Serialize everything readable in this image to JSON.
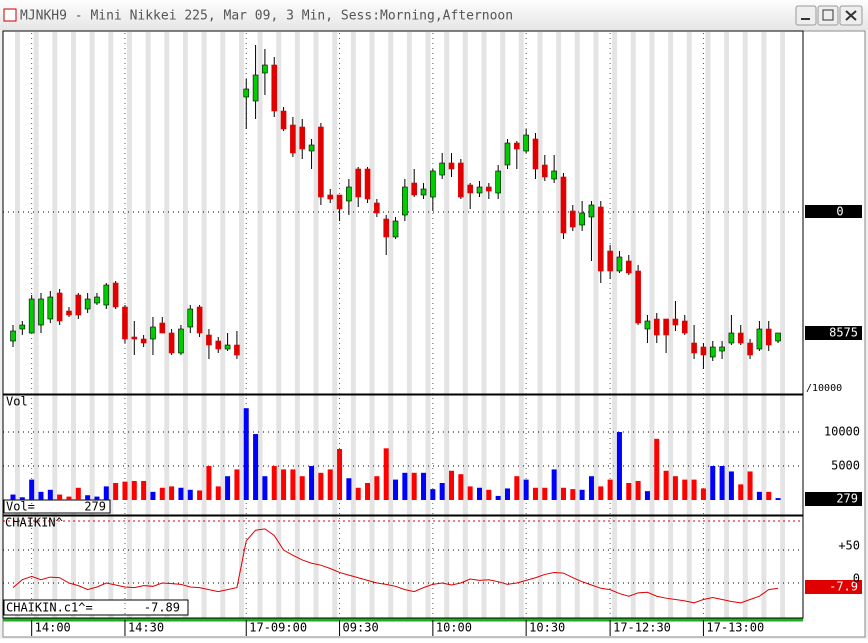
{
  "window": {
    "title": "MJNKH9 - Mini Nikkei 225, Mar 09, 3 Min, Sess:Morning,Afternoon"
  },
  "chart_data": [
    {
      "type": "candlestick",
      "right_axis_label": "0",
      "scale_note": "/10000",
      "ylim": [
        8545,
        8725
      ],
      "up_color": "#00cc00",
      "down_color": "#e00000",
      "categories": [
        null,
        null,
        "14:00",
        null,
        null,
        null,
        null,
        null,
        null,
        null,
        null,
        null,
        "14:30",
        null,
        null,
        null,
        null,
        null,
        null,
        null,
        null,
        null,
        null,
        null,
        null,
        "17-09:00",
        null,
        null,
        null,
        null,
        null,
        null,
        null,
        null,
        null,
        "09:30",
        null,
        null,
        null,
        null,
        null,
        null,
        null,
        null,
        null,
        "10:00",
        null,
        null,
        null,
        null,
        null,
        null,
        null,
        null,
        null,
        "10:30",
        null,
        null,
        null,
        null,
        null,
        null,
        null,
        null,
        "17-12:30",
        null,
        null,
        null,
        null,
        null,
        null,
        null,
        null,
        null,
        "17-13:00",
        null,
        null,
        null,
        null,
        null,
        null,
        null,
        null
      ],
      "ohlc": [
        [
          8571,
          8579,
          8568,
          8576
        ],
        [
          8577,
          8581,
          8574,
          8579
        ],
        [
          8575,
          8594,
          8575,
          8592
        ],
        [
          8579,
          8595,
          8575,
          8592
        ],
        [
          8582,
          8596,
          8580,
          8593
        ],
        [
          8595,
          8597,
          8579,
          8581
        ],
        [
          8586,
          8588,
          8583,
          8584
        ],
        [
          8594,
          8595,
          8582,
          8584
        ],
        [
          8587,
          8595,
          8585,
          8592
        ],
        [
          8590,
          8595,
          8589,
          8593
        ],
        [
          8589,
          8600,
          8587,
          8599
        ],
        [
          8600,
          8601,
          8587,
          8588
        ],
        [
          8588,
          8589,
          8570,
          8572
        ],
        [
          8573,
          8581,
          8564,
          8572
        ],
        [
          8572,
          8574,
          8568,
          8570
        ],
        [
          8572,
          8583,
          8564,
          8578
        ],
        [
          8580,
          8583,
          8575,
          8575
        ],
        [
          8575,
          8577,
          8564,
          8565
        ],
        [
          8565,
          8579,
          8564,
          8577
        ],
        [
          8578,
          8589,
          8575,
          8587
        ],
        [
          8588,
          8589,
          8573,
          8575
        ],
        [
          8574,
          8577,
          8562,
          8569
        ],
        [
          8571,
          8573,
          8565,
          8567
        ],
        [
          8567,
          8575,
          8566,
          8569
        ],
        [
          8569,
          8576,
          8562,
          8564
        ],
        [
          8693,
          8702,
          8677,
          8697
        ],
        [
          8691,
          8719,
          8682,
          8704
        ],
        [
          8705,
          8717,
          8694,
          8709
        ],
        [
          8709,
          8713,
          8683,
          8686
        ],
        [
          8686,
          8688,
          8676,
          8677
        ],
        [
          8679,
          8683,
          8663,
          8665
        ],
        [
          8678,
          8682,
          8662,
          8667
        ],
        [
          8666,
          8672,
          8657,
          8669
        ],
        [
          8678,
          8680,
          8639,
          8643
        ],
        [
          8644,
          8647,
          8640,
          8642
        ],
        [
          8644,
          8644,
          8631,
          8637
        ],
        [
          8641,
          8652,
          8634,
          8648
        ],
        [
          8657,
          8658,
          8638,
          8643
        ],
        [
          8657,
          8658,
          8640,
          8642
        ],
        [
          8640,
          8642,
          8633,
          8635
        ],
        [
          8632,
          8634,
          8614,
          8623
        ],
        [
          8623,
          8633,
          8622,
          8631
        ],
        [
          8634,
          8652,
          8631,
          8648
        ],
        [
          8650,
          8657,
          8643,
          8644
        ],
        [
          8644,
          8650,
          8642,
          8647
        ],
        [
          8643,
          8657,
          8636,
          8656
        ],
        [
          8654,
          8665,
          8652,
          8660
        ],
        [
          8660,
          8665,
          8653,
          8657
        ],
        [
          8660,
          8662,
          8642,
          8643
        ],
        [
          8649,
          8650,
          8637,
          8645
        ],
        [
          8645,
          8651,
          8643,
          8648
        ],
        [
          8648,
          8650,
          8642,
          8646
        ],
        [
          8645,
          8659,
          8642,
          8656
        ],
        [
          8659,
          8672,
          8657,
          8670
        ],
        [
          8670,
          8671,
          8657,
          8667
        ],
        [
          8666,
          8677,
          8665,
          8674
        ],
        [
          8672,
          8675,
          8652,
          8657
        ],
        [
          8659,
          8664,
          8651,
          8653
        ],
        [
          8652,
          8664,
          8650,
          8656
        ],
        [
          8653,
          8655,
          8622,
          8625
        ],
        [
          8636,
          8639,
          8626,
          8628
        ],
        [
          8629,
          8641,
          8626,
          8635
        ],
        [
          8633,
          8641,
          8611,
          8639
        ],
        [
          8638,
          8641,
          8600,
          8606
        ],
        [
          8616,
          8619,
          8602,
          8606
        ],
        [
          8606,
          8616,
          8605,
          8613
        ],
        [
          8611,
          8614,
          8604,
          8605
        ],
        [
          8606,
          8609,
          8579,
          8580
        ],
        [
          8577,
          8584,
          8570,
          8581
        ],
        [
          8582,
          8585,
          8570,
          8574
        ],
        [
          8582,
          8582,
          8565,
          8574
        ],
        [
          8582,
          8591,
          8576,
          8579
        ],
        [
          8581,
          8584,
          8574,
          8575
        ],
        [
          8570,
          8579,
          8562,
          8565
        ],
        [
          8568,
          8570,
          8557,
          8564
        ],
        [
          8563,
          8571,
          8561,
          8568
        ],
        [
          8566,
          8571,
          8562,
          8568
        ],
        [
          8570,
          8584,
          8569,
          8575
        ],
        [
          8575,
          8579,
          8569,
          8570
        ],
        [
          8570,
          8572,
          8562,
          8564
        ],
        [
          8567,
          8581,
          8566,
          8577
        ],
        [
          8577,
          8581,
          8566,
          8569
        ],
        [
          8571,
          8575,
          8570,
          8575
        ]
      ]
    },
    {
      "type": "bar",
      "name": "Vol",
      "readout_label": "Vol=",
      "ylim": [
        0,
        15150
      ],
      "yticks": [
        5000,
        10000
      ],
      "grid": true,
      "values": [
        800,
        400,
        3000,
        1200,
        1500,
        800,
        500,
        1800,
        700,
        500,
        2000,
        2500,
        2700,
        2800,
        2800,
        1200,
        1800,
        2000,
        1800,
        1500,
        1400,
        5000,
        2000,
        3500,
        4500,
        13500,
        9700,
        3500,
        5000,
        4500,
        4500,
        3500,
        5000,
        4000,
        4500,
        7500,
        3200,
        1800,
        2500,
        3500,
        7600,
        3000,
        4000,
        4000,
        4000,
        1600,
        2500,
        4300,
        3800,
        2000,
        1800,
        1500,
        600,
        1700,
        3500,
        3000,
        1800,
        1800,
        4500,
        1800,
        1600,
        1500,
        3500,
        2000,
        3000,
        10000,
        2500,
        2800,
        1300,
        9000,
        4300,
        3500,
        3000,
        3000,
        1700,
        5000,
        5000,
        4200,
        2300,
        4200,
        1200,
        1200,
        279
      ]
    },
    {
      "type": "line",
      "name": "CHAIKIN^",
      "readout_label": "CHAIKIN.c1^=",
      "color": "#e00000",
      "ylim": [
        -51.5,
        98.5
      ],
      "yticks": [
        {
          "value": 50,
          "label": "+50"
        },
        0
      ],
      "grid": true,
      "last_label": "-7.9",
      "values": [
        -7,
        5,
        10,
        5,
        9,
        8,
        0,
        -4,
        -10,
        -6,
        0,
        -3,
        -6,
        -7,
        -4,
        -5,
        0,
        -1,
        -2,
        -6,
        -7,
        -10,
        -13,
        -10,
        -7,
        64,
        80,
        82,
        72,
        50,
        42,
        35,
        30,
        27,
        22,
        16,
        12,
        8,
        4,
        0,
        -2,
        -5,
        -10,
        -13,
        -7,
        -2,
        0,
        -3,
        0,
        6,
        4,
        5,
        2,
        -2,
        0,
        4,
        8,
        13,
        16,
        15,
        8,
        2,
        -3,
        -8,
        -10,
        -16,
        -20,
        -15,
        -14,
        -20,
        -23,
        -25,
        -27,
        -30,
        -25,
        -22,
        -25,
        -28,
        -30,
        -25,
        -20,
        -10,
        -7.89
      ]
    }
  ]
}
